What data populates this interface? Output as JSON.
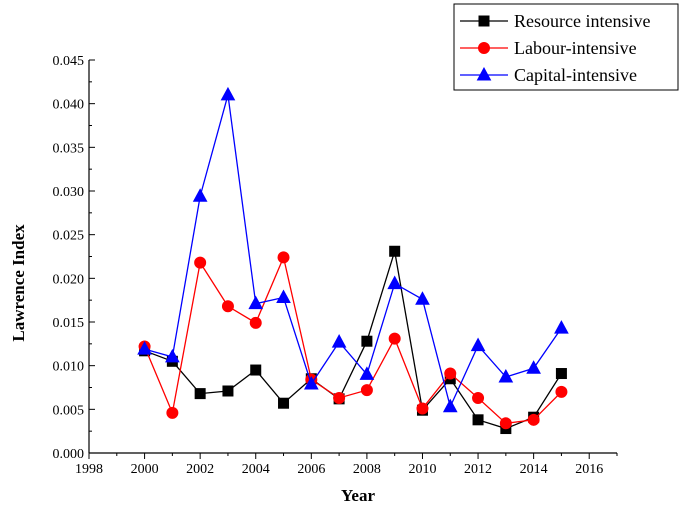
{
  "chart_data": {
    "type": "line",
    "title": "",
    "xlabel": "Year",
    "ylabel": "Lawrence Index",
    "xlim": [
      1998,
      2017
    ],
    "ylim": [
      0,
      0.045
    ],
    "x_ticks": [
      "1998",
      "2000",
      "2002",
      "2004",
      "2006",
      "2008",
      "2010",
      "2012",
      "2014",
      "2016"
    ],
    "y_ticks": [
      "0.000",
      "0.005",
      "0.010",
      "0.015",
      "0.020",
      "0.025",
      "0.030",
      "0.035",
      "0.040",
      "0.045"
    ],
    "grid": false,
    "legend_position": "top-right",
    "x": [
      2000,
      2001,
      2002,
      2003,
      2004,
      2005,
      2006,
      2007,
      2008,
      2009,
      2010,
      2011,
      2012,
      2013,
      2014,
      2015
    ],
    "series": [
      {
        "name": "Resource intensive",
        "color": "#000000",
        "marker": "square",
        "values": [
          0.0117,
          0.0105,
          0.0068,
          0.0071,
          0.0095,
          0.0057,
          0.0085,
          0.0062,
          0.0128,
          0.0231,
          0.0049,
          0.0085,
          0.0038,
          0.0028,
          0.0041,
          0.0091
        ]
      },
      {
        "name": "Labour-intensive",
        "color": "#ff0000",
        "marker": "circle",
        "values": [
          0.0122,
          0.0046,
          0.0218,
          0.0168,
          0.0149,
          0.0224,
          0.0084,
          0.0063,
          0.0072,
          0.0131,
          0.0051,
          0.0091,
          0.0063,
          0.0034,
          0.0038,
          0.007
        ]
      },
      {
        "name": "Capital-intensive",
        "color": "#0000ff",
        "marker": "triangle",
        "values": [
          0.0119,
          0.011,
          0.0294,
          0.041,
          0.0171,
          0.0178,
          0.0079,
          0.0127,
          0.009,
          0.0194,
          0.0176,
          0.0053,
          0.0123,
          0.0087,
          0.0097,
          0.0143
        ]
      }
    ]
  }
}
